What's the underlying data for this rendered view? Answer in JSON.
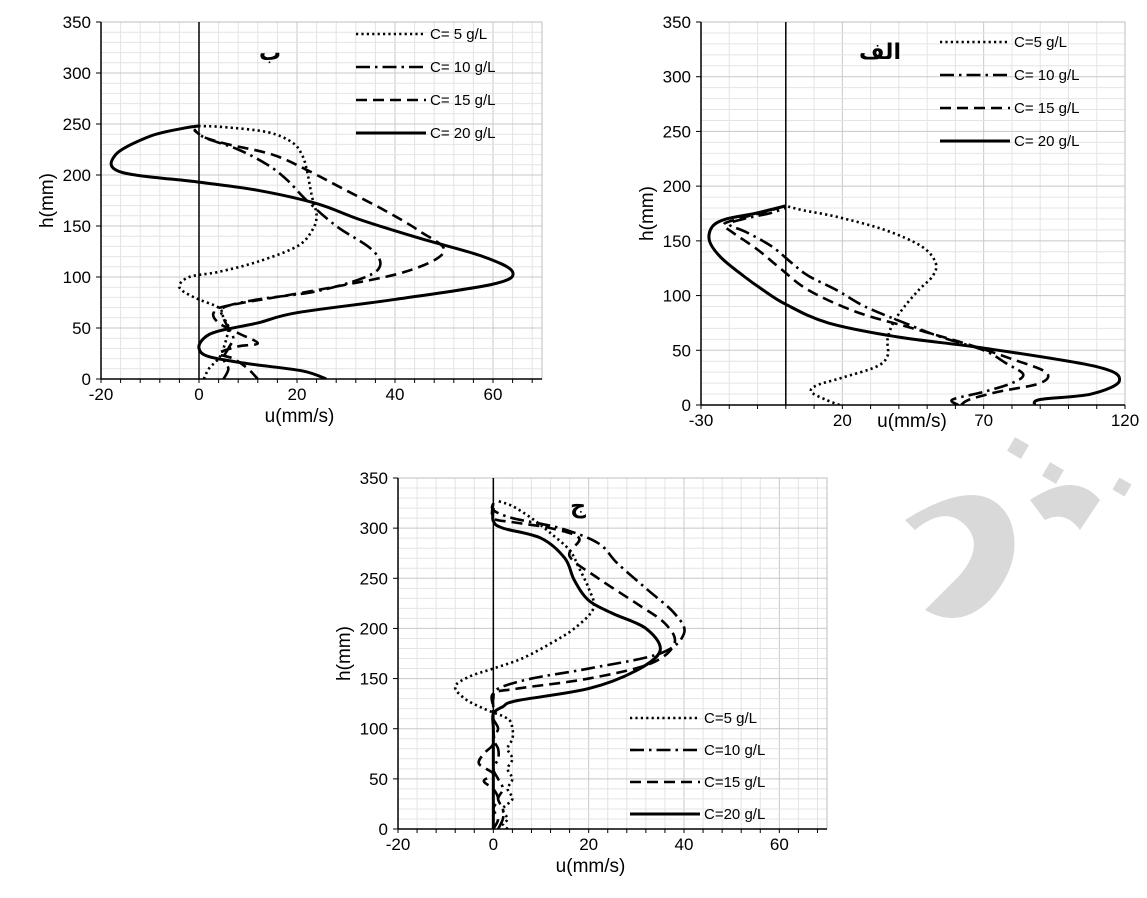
{
  "chart_data": [
    {
      "id": "b",
      "type": "line",
      "panel_label": "ب",
      "xlabel": "u(mm/s)",
      "ylabel": "h(mm)",
      "xlim": [
        -20,
        70
      ],
      "ylim": [
        0,
        350
      ],
      "x_ticks": [
        -20,
        0,
        20,
        40,
        60
      ],
      "y_ticks": [
        0,
        50,
        100,
        150,
        200,
        250,
        300,
        350
      ],
      "grid": true,
      "legend_position": "top-right",
      "series": [
        {
          "name": "C= 5 g/L",
          "style": "dotted",
          "points": [
            [
              1,
              0
            ],
            [
              2,
              10
            ],
            [
              4,
              20
            ],
            [
              5,
              30
            ],
            [
              6,
              50
            ],
            [
              5,
              60
            ],
            [
              4,
              70
            ],
            [
              -1,
              80
            ],
            [
              -4,
              90
            ],
            [
              -2,
              100
            ],
            [
              4,
              105
            ],
            [
              12,
              115
            ],
            [
              20,
              130
            ],
            [
              23,
              145
            ],
            [
              24,
              160
            ],
            [
              23,
              180
            ],
            [
              22,
              205
            ],
            [
              21,
              220
            ],
            [
              19,
              232
            ],
            [
              14,
              242
            ],
            [
              5,
              247
            ],
            [
              0,
              248
            ]
          ]
        },
        {
          "name": "C= 10 g/L",
          "style": "dashdot",
          "points": [
            [
              5,
              0
            ],
            [
              6,
              10
            ],
            [
              5,
              20
            ],
            [
              6,
              30
            ],
            [
              7,
              40
            ],
            [
              6,
              50
            ],
            [
              5,
              60
            ],
            [
              5,
              70
            ],
            [
              12,
              78
            ],
            [
              24,
              86
            ],
            [
              34,
              100
            ],
            [
              37,
              112
            ],
            [
              35,
              128
            ],
            [
              28,
              150
            ],
            [
              22,
              175
            ],
            [
              18,
              195
            ],
            [
              14,
              210
            ],
            [
              8,
              225
            ],
            [
              2,
              235
            ],
            [
              0,
              240
            ],
            [
              -1,
              245
            ]
          ]
        },
        {
          "name": "C= 15 g/L",
          "style": "dashed",
          "points": [
            [
              12,
              0
            ],
            [
              10,
              10
            ],
            [
              7,
              20
            ],
            [
              4,
              25
            ],
            [
              8,
              32
            ],
            [
              12,
              35
            ],
            [
              8,
              45
            ],
            [
              4,
              55
            ],
            [
              3,
              65
            ],
            [
              6,
              72
            ],
            [
              25,
              88
            ],
            [
              42,
              105
            ],
            [
              50,
              125
            ],
            [
              45,
              145
            ],
            [
              38,
              165
            ],
            [
              30,
              185
            ],
            [
              22,
              205
            ],
            [
              15,
              220
            ],
            [
              6,
              230
            ],
            [
              1,
              237
            ],
            [
              0,
              240
            ],
            [
              -1,
              244
            ]
          ]
        },
        {
          "name": "C= 20 g/L",
          "style": "solid",
          "points": [
            [
              26,
              0
            ],
            [
              21,
              8
            ],
            [
              10,
              15
            ],
            [
              2,
              22
            ],
            [
              0,
              30
            ],
            [
              1,
              40
            ],
            [
              4,
              47
            ],
            [
              12,
              55
            ],
            [
              20,
              65
            ],
            [
              40,
              78
            ],
            [
              60,
              93
            ],
            [
              64,
              105
            ],
            [
              58,
              120
            ],
            [
              45,
              138
            ],
            [
              33,
              156
            ],
            [
              24,
              172
            ],
            [
              12,
              185
            ],
            [
              0,
              193
            ],
            [
              -16,
              203
            ],
            [
              -17,
              220
            ],
            [
              -10,
              238
            ],
            [
              -3,
              246
            ],
            [
              0,
              248
            ]
          ]
        }
      ]
    },
    {
      "id": "alef",
      "type": "line",
      "panel_label": "الف",
      "xlabel": "u(mm/s)",
      "ylabel": "h(mm)",
      "xlim": [
        -30,
        120
      ],
      "ylim": [
        0,
        350
      ],
      "x_ticks": [
        -30,
        20,
        70,
        120
      ],
      "y_ticks": [
        0,
        50,
        100,
        150,
        200,
        250,
        300,
        350
      ],
      "grid": true,
      "legend_position": "top-right",
      "series": [
        {
          "name": "C=5 g/L",
          "style": "dotted",
          "points": [
            [
              19,
              0
            ],
            [
              14,
              5
            ],
            [
              9,
              12
            ],
            [
              11,
              18
            ],
            [
              20,
              25
            ],
            [
              32,
              35
            ],
            [
              36,
              45
            ],
            [
              36,
              60
            ],
            [
              38,
              75
            ],
            [
              42,
              90
            ],
            [
              47,
              105
            ],
            [
              52,
              118
            ],
            [
              53,
              130
            ],
            [
              48,
              145
            ],
            [
              35,
              160
            ],
            [
              18,
              172
            ],
            [
              6,
              178
            ],
            [
              0,
              182
            ]
          ]
        },
        {
          "name": "C= 10 g/L",
          "style": "dashdot",
          "points": [
            [
              61,
              0
            ],
            [
              59,
              5
            ],
            [
              70,
              12
            ],
            [
              80,
              20
            ],
            [
              84,
              28
            ],
            [
              78,
              38
            ],
            [
              70,
              50
            ],
            [
              55,
              62
            ],
            [
              42,
              75
            ],
            [
              28,
              90
            ],
            [
              18,
              105
            ],
            [
              8,
              118
            ],
            [
              2,
              130
            ],
            [
              -5,
              145
            ],
            [
              -14,
              158
            ],
            [
              -20,
              165
            ],
            [
              -15,
              170
            ],
            [
              -6,
              175
            ],
            [
              0,
              180
            ]
          ]
        },
        {
          "name": "C= 15 g/L",
          "style": "dashed",
          "points": [
            [
              62,
              0
            ],
            [
              65,
              5
            ],
            [
              75,
              12
            ],
            [
              90,
              20
            ],
            [
              92,
              30
            ],
            [
              80,
              42
            ],
            [
              65,
              55
            ],
            [
              45,
              70
            ],
            [
              25,
              85
            ],
            [
              8,
              105
            ],
            [
              -2,
              125
            ],
            [
              -10,
              142
            ],
            [
              -19,
              158
            ],
            [
              -22,
              165
            ],
            [
              -17,
              170
            ],
            [
              -8,
              176
            ],
            [
              0,
              182
            ]
          ]
        },
        {
          "name": "C= 20 g/L",
          "style": "solid",
          "points": [
            [
              88,
              0
            ],
            [
              90,
              5
            ],
            [
              108,
              10
            ],
            [
              118,
              22
            ],
            [
              110,
              35
            ],
            [
              70,
              52
            ],
            [
              40,
              62
            ],
            [
              15,
              75
            ],
            [
              0,
              92
            ],
            [
              -8,
              105
            ],
            [
              -15,
              118
            ],
            [
              -23,
              135
            ],
            [
              -27,
              150
            ],
            [
              -26,
              163
            ],
            [
              -21,
              170
            ],
            [
              -11,
              175
            ],
            [
              0,
              182
            ]
          ]
        }
      ]
    },
    {
      "id": "jim",
      "type": "line",
      "panel_label": "ج",
      "xlabel": "u(mm/s)",
      "ylabel": "h(mm)",
      "xlim": [
        -20,
        70
      ],
      "ylim": [
        0,
        350
      ],
      "x_ticks": [
        -20,
        0,
        20,
        40,
        60
      ],
      "y_ticks": [
        0,
        50,
        100,
        150,
        200,
        250,
        300,
        350
      ],
      "grid": true,
      "legend_position": "bottom-right",
      "series": [
        {
          "name": "C=5 g/L",
          "style": "dotted",
          "points": [
            [
              3,
              0
            ],
            [
              2,
              5
            ],
            [
              3,
              10
            ],
            [
              2,
              20
            ],
            [
              4,
              30
            ],
            [
              3,
              40
            ],
            [
              4,
              50
            ],
            [
              3,
              60
            ],
            [
              4,
              70
            ],
            [
              3,
              80
            ],
            [
              4,
              90
            ],
            [
              4,
              100
            ],
            [
              3,
              110
            ],
            [
              -2,
              120
            ],
            [
              -6,
              130
            ],
            [
              -8,
              142
            ],
            [
              -5,
              152
            ],
            [
              0,
              160
            ],
            [
              6,
              170
            ],
            [
              12,
              185
            ],
            [
              17,
              200
            ],
            [
              21,
              220
            ],
            [
              20,
              240
            ],
            [
              18,
              260
            ],
            [
              16,
              278
            ],
            [
              12,
              295
            ],
            [
              8,
              310
            ],
            [
              4,
              322
            ],
            [
              1,
              327
            ]
          ]
        },
        {
          "name": "C=10 g/L",
          "style": "dashdot",
          "points": [
            [
              1,
              0
            ],
            [
              2,
              10
            ],
            [
              2,
              20
            ],
            [
              1,
              30
            ],
            [
              2,
              40
            ],
            [
              1,
              50
            ],
            [
              0,
              60
            ],
            [
              1,
              70
            ],
            [
              1,
              80
            ],
            [
              0,
              90
            ],
            [
              1,
              100
            ],
            [
              0,
              110
            ],
            [
              0,
              120
            ],
            [
              0,
              130
            ],
            [
              1,
              140
            ],
            [
              8,
              150
            ],
            [
              20,
              160
            ],
            [
              35,
              175
            ],
            [
              40,
              195
            ],
            [
              38,
              215
            ],
            [
              32,
              240
            ],
            [
              26,
              265
            ],
            [
              22,
              285
            ],
            [
              14,
              300
            ],
            [
              4,
              310
            ],
            [
              0,
              318
            ],
            [
              0,
              325
            ]
          ]
        },
        {
          "name": "C=15 g/L",
          "style": "dashed",
          "points": [
            [
              0,
              0
            ],
            [
              1,
              10
            ],
            [
              0,
              20
            ],
            [
              1,
              30
            ],
            [
              0,
              40
            ],
            [
              -2,
              48
            ],
            [
              0,
              55
            ],
            [
              -3,
              65
            ],
            [
              -2,
              75
            ],
            [
              0,
              85
            ],
            [
              0,
              100
            ],
            [
              0,
              120
            ],
            [
              0,
              135
            ],
            [
              5,
              140
            ],
            [
              20,
              150
            ],
            [
              33,
              165
            ],
            [
              38,
              185
            ],
            [
              36,
              205
            ],
            [
              30,
              225
            ],
            [
              22,
              250
            ],
            [
              16,
              272
            ],
            [
              18,
              290
            ],
            [
              12,
              300
            ],
            [
              4,
              306
            ],
            [
              0,
              310
            ],
            [
              0,
              325
            ]
          ]
        },
        {
          "name": "C=20 g/L",
          "style": "solid",
          "points": [
            [
              0,
              0
            ],
            [
              0,
              20
            ],
            [
              0,
              40
            ],
            [
              0,
              60
            ],
            [
              0,
              80
            ],
            [
              0,
              100
            ],
            [
              0,
              115
            ],
            [
              2,
              122
            ],
            [
              5,
              128
            ],
            [
              20,
              140
            ],
            [
              30,
              158
            ],
            [
              35,
              178
            ],
            [
              32,
              200
            ],
            [
              25,
              215
            ],
            [
              20,
              228
            ],
            [
              17,
              248
            ],
            [
              15,
              270
            ],
            [
              10,
              290
            ],
            [
              2,
              300
            ],
            [
              0,
              307
            ],
            [
              0,
              320
            ]
          ]
        }
      ]
    }
  ]
}
